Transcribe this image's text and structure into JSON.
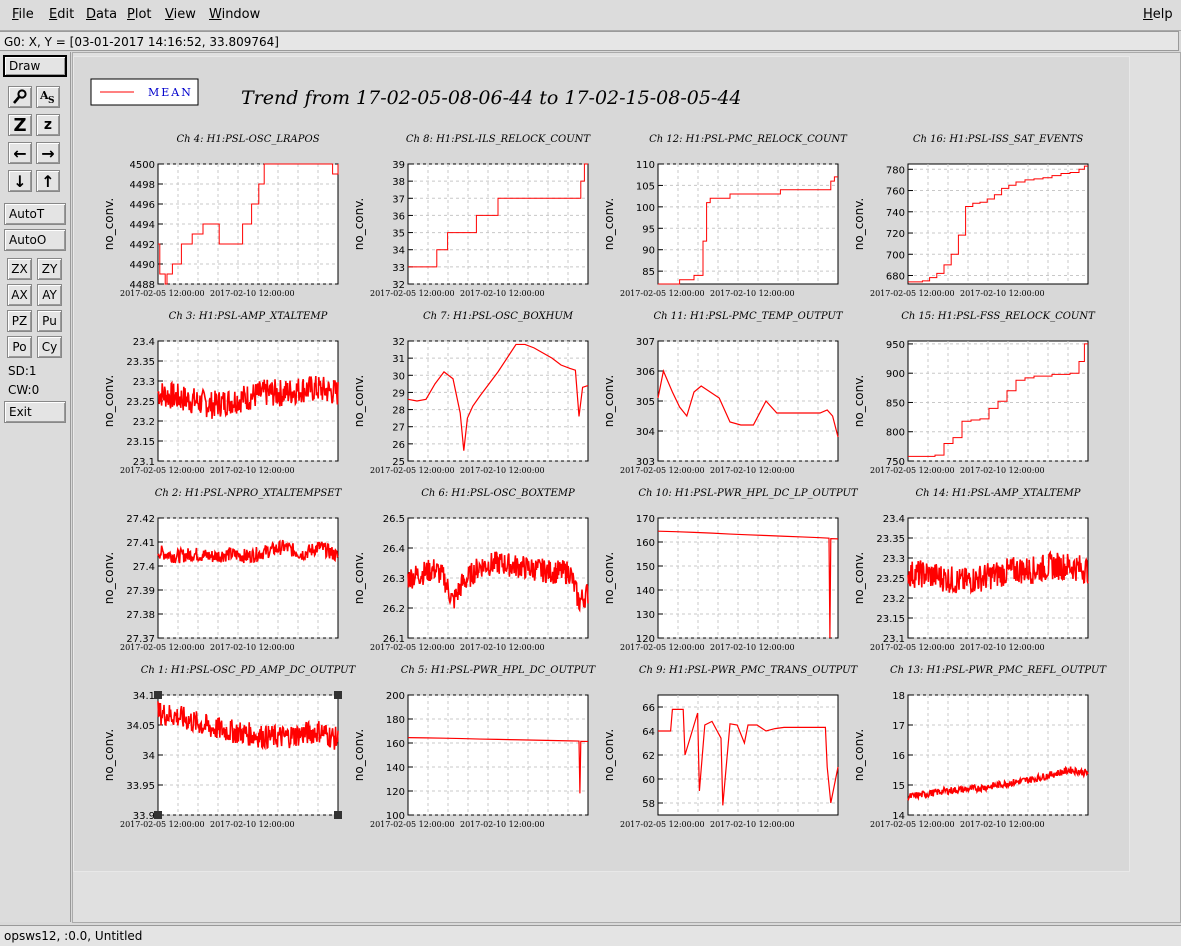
{
  "menu": {
    "file": "File",
    "edit": "Edit",
    "data": "Data",
    "plot": "Plot",
    "view": "View",
    "window": "Window",
    "help": "Help"
  },
  "coord_readout": "G0: X, Y = [03-01-2017 14:16:52, 33.809764]",
  "toolbox": {
    "draw": "Draw",
    "autot": "AutoT",
    "autoo": "AutoO",
    "zx": "ZX",
    "zy": "ZY",
    "ax": "AX",
    "ay": "AY",
    "pz": "PZ",
    "pu": "Pu",
    "po": "Po",
    "cy": "Cy",
    "sd": "SD:1",
    "cw": "CW:0",
    "exit": "Exit",
    "zoom_big": "Z",
    "zoom_small": "z"
  },
  "status_text": "opsws12, :0.0, Untitled",
  "legend": {
    "label": "MEAN",
    "color": "#ff0000"
  },
  "main_title": "Trend from 17-02-05-08-06-44 to 17-02-15-08-05-44",
  "ylabel": "no_conv.",
  "xticks": [
    "2017-02-05 12:00:00",
    "2017-02-10 12:00:00"
  ],
  "chart_data": [
    {
      "type": "line",
      "title": "Ch 4: H1:PSL-OSC_LRAPOS",
      "ylim": [
        4488,
        4500
      ],
      "yticks": [
        "4488",
        "4490",
        "4492",
        "4494",
        "4496",
        "4498",
        "4500"
      ],
      "kind": "step",
      "x": [
        0,
        0.1,
        0.4,
        0.5,
        0.8,
        1.3,
        1.9,
        2.5,
        3.4,
        4.0,
        4.2,
        4.7,
        5.2,
        5.6,
        5.9,
        6.2,
        7.0,
        7.8,
        8.2,
        8.6,
        9.0,
        9.4,
        9.7,
        10.0
      ],
      "values": [
        4492,
        4489,
        4488,
        4489,
        4490,
        4492,
        4493,
        4494,
        4492,
        4492,
        4492,
        4494,
        4496,
        4498,
        4500,
        4500,
        4500,
        4500,
        4500,
        4500,
        4500,
        4500,
        4499,
        4500
      ]
    },
    {
      "type": "line",
      "title": "Ch 8: H1:PSL-ILS_RELOCK_COUNT",
      "ylim": [
        32,
        39
      ],
      "yticks": [
        "32",
        "33",
        "34",
        "35",
        "36",
        "37",
        "38",
        "39"
      ],
      "kind": "step",
      "x": [
        0,
        0.5,
        1.0,
        1.6,
        2.2,
        3.0,
        3.8,
        4.4,
        5.0,
        5.8,
        6.6,
        7.4,
        8.2,
        8.8,
        9.2,
        9.4,
        9.6,
        9.8
      ],
      "values": [
        33,
        33,
        33,
        34,
        35,
        35,
        36,
        36,
        37,
        37,
        37,
        37,
        37,
        37,
        37,
        37,
        38,
        39
      ]
    },
    {
      "type": "line",
      "title": "Ch 12: H1:PSL-PMC_RELOCK_COUNT",
      "ylim": [
        82,
        110
      ],
      "yticks": [
        "85",
        "90",
        "95",
        "100",
        "105",
        "110"
      ],
      "kind": "step",
      "x": [
        0,
        0.6,
        1.2,
        2.0,
        2.5,
        2.7,
        2.9,
        3.2,
        4.0,
        5.0,
        6.0,
        6.8,
        7.6,
        8.4,
        9.2,
        9.6,
        9.8
      ],
      "values": [
        82,
        82,
        83,
        84,
        92,
        101,
        102,
        102,
        103,
        103,
        103,
        104,
        104,
        104,
        104,
        106,
        107
      ]
    },
    {
      "type": "line",
      "title": "Ch 16: H1:PSL-ISS_SAT_EVENTS",
      "ylim": [
        672,
        785
      ],
      "yticks": [
        "680",
        "700",
        "720",
        "740",
        "760",
        "780"
      ],
      "kind": "step",
      "x": [
        0,
        0.8,
        1.2,
        1.6,
        2.0,
        2.4,
        2.8,
        3.2,
        3.6,
        4.0,
        4.4,
        4.8,
        5.2,
        5.6,
        6.0,
        6.5,
        7.0,
        7.5,
        8.0,
        8.5,
        9.0,
        9.5,
        9.8
      ],
      "values": [
        674,
        675,
        678,
        682,
        690,
        700,
        718,
        745,
        748,
        749,
        752,
        756,
        762,
        765,
        768,
        770,
        771,
        772,
        774,
        776,
        777,
        780,
        783
      ]
    },
    {
      "type": "line",
      "title": "Ch 3: H1:PSL-AMP_XTALTEMP",
      "ylim": [
        23.1,
        23.4
      ],
      "yticks": [
        "23.1",
        "23.15",
        "23.2",
        "23.25",
        "23.3",
        "23.35",
        "23.4"
      ],
      "kind": "noise",
      "x": [
        0,
        1,
        2,
        3,
        4,
        5,
        6,
        7,
        8,
        9,
        10
      ],
      "values": [
        23.27,
        23.26,
        23.25,
        23.24,
        23.25,
        23.26,
        23.27,
        23.27,
        23.28,
        23.28,
        23.27
      ],
      "band": 0.035
    },
    {
      "type": "line",
      "title": "Ch 7: H1:PSL-OSC_BOXHUM",
      "ylim": [
        25,
        32
      ],
      "yticks": [
        "25",
        "26",
        "27",
        "28",
        "29",
        "30",
        "31",
        "32"
      ],
      "kind": "line",
      "x": [
        0,
        0.5,
        1.0,
        1.5,
        2.0,
        2.5,
        2.9,
        3.1,
        3.3,
        3.6,
        4.0,
        4.5,
        5.0,
        5.5,
        6.0,
        6.5,
        7.0,
        7.5,
        8.0,
        8.5,
        9.0,
        9.3,
        9.5,
        9.7,
        10.0
      ],
      "values": [
        28.6,
        28.5,
        28.6,
        29.5,
        30.2,
        29.8,
        27.8,
        25.6,
        27.5,
        28.2,
        28.8,
        29.5,
        30.2,
        31.0,
        31.8,
        31.8,
        31.6,
        31.3,
        31.0,
        30.6,
        30.4,
        30.3,
        27.6,
        29.3,
        29.4
      ]
    },
    {
      "type": "line",
      "title": "Ch 11: H1:PSL-PMC_TEMP_OUTPUT",
      "ylim": [
        303,
        307
      ],
      "yticks": [
        "303",
        "304",
        "305",
        "306",
        "307"
      ],
      "kind": "line",
      "x": [
        0,
        0.3,
        0.8,
        1.2,
        1.6,
        2.0,
        2.4,
        2.9,
        3.4,
        4.0,
        4.6,
        5.3,
        6.0,
        6.6,
        7.2,
        7.8,
        8.4,
        9.0,
        9.4,
        9.7,
        10.0
      ],
      "values": [
        305.1,
        306.0,
        305.3,
        304.8,
        304.5,
        305.3,
        305.5,
        305.3,
        305.1,
        304.3,
        304.2,
        304.2,
        305.0,
        304.6,
        304.6,
        304.6,
        304.6,
        304.6,
        304.7,
        304.5,
        303.8
      ]
    },
    {
      "type": "line",
      "title": "Ch 15: H1:PSL-FSS_RELOCK_COUNT",
      "ylim": [
        750,
        955
      ],
      "yticks": [
        "750",
        "800",
        "850",
        "900",
        "950"
      ],
      "kind": "step",
      "x": [
        0,
        1.0,
        1.5,
        2.0,
        2.5,
        3.0,
        3.5,
        4.0,
        4.5,
        5.0,
        5.5,
        6.0,
        6.5,
        7.0,
        8.0,
        9.0,
        9.5,
        9.8
      ],
      "values": [
        758,
        758,
        760,
        780,
        790,
        818,
        820,
        822,
        840,
        852,
        870,
        888,
        892,
        895,
        898,
        900,
        920,
        950
      ]
    },
    {
      "type": "line",
      "title": "Ch 2: H1:PSL-NPRO_XTALTEMPSET",
      "ylim": [
        27.37,
        27.42
      ],
      "yticks": [
        "27.37",
        "27.38",
        "27.39",
        "27.4",
        "27.41",
        "27.42"
      ],
      "kind": "noise",
      "x": [
        0,
        1,
        2,
        3,
        4,
        5,
        6,
        7,
        8,
        9,
        10
      ],
      "values": [
        27.406,
        27.404,
        27.405,
        27.404,
        27.405,
        27.404,
        27.406,
        27.408,
        27.405,
        27.408,
        27.404
      ],
      "band": 0.003
    },
    {
      "type": "line",
      "title": "Ch 6: H1:PSL-OSC_BOXTEMP",
      "ylim": [
        26.1,
        26.5
      ],
      "yticks": [
        "26.1",
        "26.2",
        "26.3",
        "26.4",
        "26.5"
      ],
      "kind": "noise",
      "x": [
        0,
        1,
        1.5,
        2,
        2.5,
        3,
        4,
        5,
        6,
        7,
        8,
        9,
        9.5,
        10
      ],
      "values": [
        26.3,
        26.32,
        26.33,
        26.3,
        26.22,
        26.28,
        26.34,
        26.35,
        26.34,
        26.33,
        26.32,
        26.32,
        26.22,
        26.25
      ],
      "band": 0.04
    },
    {
      "type": "line",
      "title": "Ch 10: H1:PSL-PWR_HPL_DC_LP_OUTPUT",
      "ylim": [
        120,
        170
      ],
      "yticks": [
        "120",
        "130",
        "140",
        "150",
        "160",
        "170"
      ],
      "kind": "line",
      "x": [
        0,
        1,
        2,
        3,
        4,
        5,
        6,
        7,
        8,
        9,
        9.5,
        9.55,
        9.6,
        10
      ],
      "values": [
        164.5,
        164.3,
        164,
        163.7,
        163.3,
        163,
        162.7,
        162.4,
        162.1,
        161.8,
        161.6,
        120,
        161.4,
        161.3
      ]
    },
    {
      "type": "line",
      "title": "Ch 14: H1:PSL-AMP_XTALTEMP",
      "ylim": [
        23.1,
        23.4
      ],
      "yticks": [
        "23.1",
        "23.15",
        "23.2",
        "23.25",
        "23.3",
        "23.35",
        "23.4"
      ],
      "kind": "noise",
      "x": [
        0,
        1,
        2,
        3,
        4,
        5,
        6,
        7,
        8,
        9,
        10
      ],
      "values": [
        23.26,
        23.26,
        23.25,
        23.24,
        23.25,
        23.26,
        23.27,
        23.27,
        23.28,
        23.28,
        23.27
      ],
      "band": 0.035
    },
    {
      "type": "line",
      "title": "Ch 1: H1:PSL-OSC_PD_AMP_DC_OUTPUT",
      "ylim": [
        33.9,
        34.1
      ],
      "yticks": [
        "33.9",
        "33.95",
        "34",
        "34.05",
        "34.1"
      ],
      "kind": "noise",
      "x": [
        0,
        1,
        2,
        3,
        4,
        5,
        6,
        7,
        8,
        9,
        10
      ],
      "values": [
        34.07,
        34.065,
        34.055,
        34.045,
        34.04,
        34.035,
        34.03,
        34.03,
        34.035,
        34.04,
        34.025
      ],
      "band": 0.02
    },
    {
      "type": "line",
      "title": "Ch 5: H1:PSL-PWR_HPL_DC_OUTPUT",
      "ylim": [
        100,
        200
      ],
      "yticks": [
        "100",
        "120",
        "140",
        "160",
        "180",
        "200"
      ],
      "kind": "line",
      "x": [
        0,
        1,
        2,
        3,
        4,
        5,
        6,
        7,
        8,
        9,
        9.5,
        9.55,
        9.6,
        10
      ],
      "values": [
        164.5,
        164.3,
        164,
        163.7,
        163.3,
        163,
        162.7,
        162.4,
        162.1,
        161.8,
        161.6,
        118,
        161.4,
        161.3
      ]
    },
    {
      "type": "line",
      "title": "Ch 9: H1:PSL-PWR_PMC_TRANS_OUTPUT",
      "ylim": [
        57,
        67
      ],
      "yticks": [
        "58",
        "60",
        "62",
        "64",
        "66"
      ],
      "kind": "line",
      "x": [
        0,
        0.7,
        0.8,
        1.4,
        1.5,
        2.2,
        2.3,
        2.6,
        3.0,
        3.5,
        3.6,
        4.0,
        4.4,
        4.8,
        5.0,
        5.5,
        6.0,
        6.5,
        7.0,
        8.0,
        9.0,
        9.3,
        9.4,
        9.6,
        10.0
      ],
      "values": [
        64,
        64,
        65.8,
        65.8,
        62,
        65.5,
        59,
        64.5,
        64.8,
        63.4,
        57.8,
        64.6,
        64.5,
        63,
        64.5,
        64.5,
        64,
        64.2,
        64.3,
        64.3,
        64.3,
        64.3,
        61,
        58,
        61
      ]
    },
    {
      "type": "line",
      "title": "Ch 13: H1:PSL-PWR_PMC_REFL_OUTPUT",
      "ylim": [
        14,
        18
      ],
      "yticks": [
        "14",
        "15",
        "16",
        "17",
        "18"
      ],
      "kind": "noise",
      "x": [
        0,
        1,
        2,
        3,
        4,
        5,
        6,
        7,
        8,
        9,
        10
      ],
      "values": [
        14.6,
        14.7,
        14.8,
        14.85,
        14.9,
        15.0,
        15.1,
        15.2,
        15.35,
        15.5,
        15.4
      ],
      "band": 0.12
    }
  ]
}
